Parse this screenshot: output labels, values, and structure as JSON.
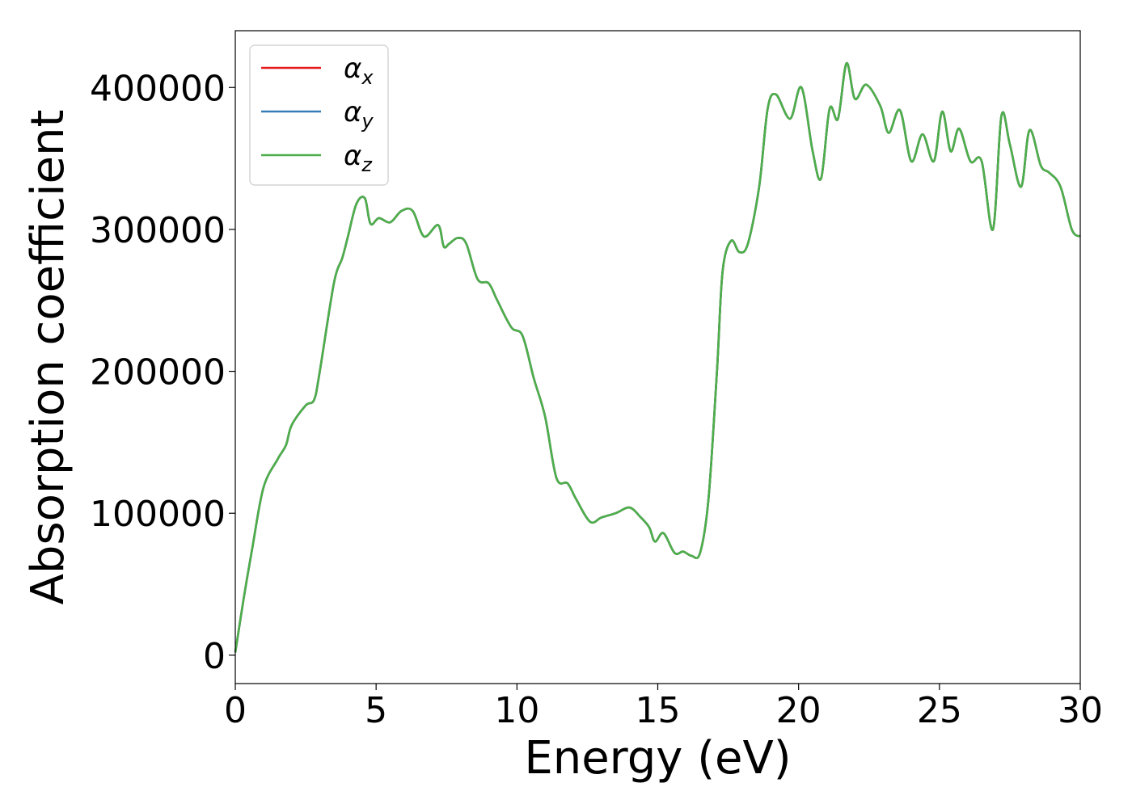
{
  "chart_data": {
    "type": "line",
    "xlabel": "Energy (eV)",
    "ylabel": "Absorption coefficient",
    "xlim": [
      0,
      30
    ],
    "ylim": [
      -20000,
      440000
    ],
    "xticks": [
      0,
      5,
      10,
      15,
      20,
      25,
      30
    ],
    "xtick_labels": [
      "0",
      "5",
      "10",
      "15",
      "20",
      "25",
      "30"
    ],
    "yticks": [
      0,
      100000,
      200000,
      300000,
      400000
    ],
    "ytick_labels": [
      "0",
      "100000",
      "200000",
      "300000",
      "400000"
    ],
    "grid": false,
    "legend_position": "top-left",
    "series": [
      {
        "name": "α",
        "sub": "x",
        "color": "#e41a1c"
      },
      {
        "name": "α",
        "sub": "y",
        "color": "#377eb8"
      },
      {
        "name": "α",
        "sub": "z",
        "color": "#4daf4a"
      }
    ],
    "x": [
      0,
      0.3,
      0.6,
      1.0,
      1.5,
      1.8,
      2.0,
      2.5,
      2.8,
      3.0,
      3.5,
      3.8,
      4.0,
      4.3,
      4.6,
      4.8,
      5.1,
      5.5,
      5.9,
      6.3,
      6.7,
      7.2,
      7.4,
      7.6,
      7.9,
      8.2,
      8.6,
      9.0,
      9.3,
      9.8,
      10.2,
      10.6,
      11.0,
      11.4,
      11.8,
      12.1,
      12.6,
      13.0,
      13.5,
      14.0,
      14.4,
      14.7,
      14.9,
      15.2,
      15.6,
      15.9,
      16.2,
      16.5,
      16.8,
      17.1,
      17.3,
      17.6,
      17.9,
      18.2,
      18.6,
      18.9,
      19.2,
      19.7,
      20.1,
      20.5,
      20.8,
      21.1,
      21.4,
      21.7,
      22.0,
      22.4,
      22.9,
      23.2,
      23.6,
      24.0,
      24.4,
      24.8,
      25.1,
      25.4,
      25.7,
      26.1,
      26.5,
      26.9,
      27.2,
      27.5,
      27.9,
      28.2,
      28.6,
      28.9,
      29.3,
      29.7,
      30.0
    ],
    "values": [
      2000,
      40000,
      75000,
      118000,
      138000,
      148000,
      162000,
      176000,
      180000,
      200000,
      262000,
      280000,
      295000,
      318000,
      322000,
      304000,
      308000,
      305000,
      313000,
      313000,
      295000,
      303000,
      288000,
      290000,
      294000,
      290000,
      265000,
      262000,
      250000,
      231000,
      225000,
      195000,
      168000,
      125000,
      121000,
      110000,
      94000,
      97000,
      100000,
      104000,
      97000,
      90000,
      80000,
      86000,
      72000,
      73000,
      70000,
      72000,
      110000,
      200000,
      270000,
      292000,
      284000,
      290000,
      330000,
      385000,
      395000,
      378000,
      400000,
      355000,
      336000,
      385000,
      378000,
      417000,
      392000,
      402000,
      387000,
      368000,
      384000,
      348000,
      367000,
      348000,
      383000,
      355000,
      371000,
      348000,
      348000,
      300000,
      380000,
      360000,
      330000,
      370000,
      345000,
      340000,
      330000,
      300000,
      295000
    ]
  }
}
